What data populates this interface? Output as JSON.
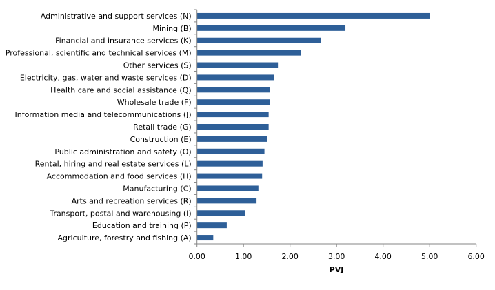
{
  "chart_data": {
    "type": "bar",
    "orientation": "horizontal",
    "categories": [
      "Administrative and support services (N)",
      "Mining (B)",
      "Financial and insurance services (K)",
      "Professional, scientific and technical services (M)",
      "Other services (S)",
      "Electricity, gas, water and waste services (D)",
      "Health care and social assistance (Q)",
      "Wholesale trade (F)",
      "Information media and telecommunications (J)",
      "Retail trade (G)",
      "Construction (E)",
      "Public administration and safety (O)",
      "Rental, hiring and real estate services (L)",
      "Accommodation and food services (H)",
      "Manufacturing (C)",
      "Arts and recreation services (R)",
      "Transport, postal and warehousing (I)",
      "Education and training (P)",
      "Agriculture, forestry and fishing (A)"
    ],
    "values": [
      5.0,
      3.19,
      2.67,
      2.24,
      1.74,
      1.65,
      1.57,
      1.56,
      1.54,
      1.54,
      1.51,
      1.45,
      1.41,
      1.4,
      1.32,
      1.28,
      1.03,
      0.64,
      0.35
    ],
    "title": "",
    "xlabel": "PVJ",
    "ylabel": "",
    "xlim": [
      0,
      6
    ],
    "xticks": [
      "0.00",
      "1.00",
      "2.00",
      "3.00",
      "4.00",
      "5.00",
      "6.00"
    ],
    "grid": false,
    "legend": "none",
    "bar_color": "#2E5F98",
    "axis_color": "#868686"
  }
}
